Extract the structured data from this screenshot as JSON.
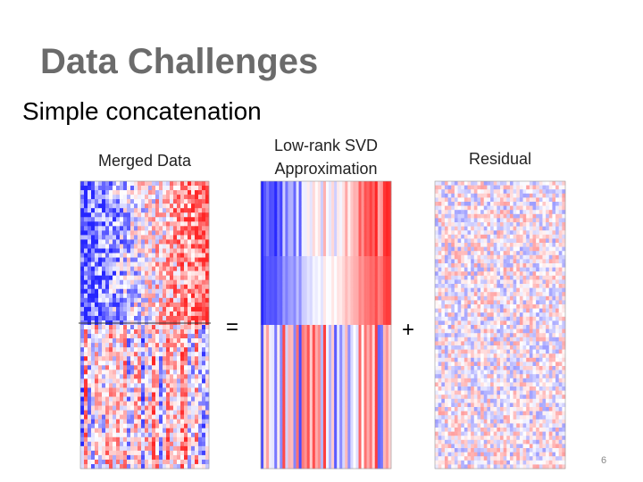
{
  "header": {
    "title": "Data Challenges",
    "subtitle": "Simple concatenation"
  },
  "panels": [
    {
      "label": [
        "Merged Data"
      ]
    },
    {
      "label": [
        "Low-rank SVD",
        "Approximation"
      ]
    },
    {
      "label": [
        "Residual"
      ]
    }
  ],
  "operators": [
    "=",
    "+"
  ],
  "page_number": "6"
}
